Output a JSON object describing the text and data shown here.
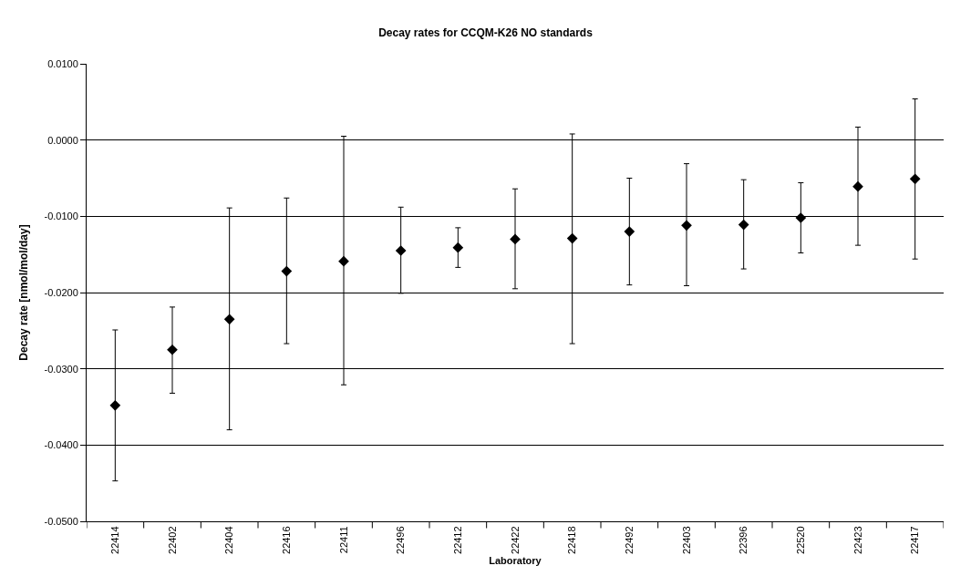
{
  "chart_data": {
    "type": "scatter",
    "title": "Decay rates for CCQM-K26 NO standards",
    "xlabel": "Laboratory",
    "ylabel": "Decay rate [nmol/mol/day]",
    "categories": [
      "22414",
      "22402",
      "22404",
      "22416",
      "22411",
      "22496",
      "22412",
      "22422",
      "22418",
      "22492",
      "22403",
      "22396",
      "22520",
      "22423",
      "22417"
    ],
    "series": [
      {
        "color": "#000000",
        "values": [
          -0.0348,
          -0.0275,
          -0.0235,
          -0.0172,
          -0.0159,
          -0.0145,
          -0.0141,
          -0.013,
          -0.0129,
          -0.012,
          -0.0112,
          -0.0111,
          -0.0102,
          -0.0061,
          -0.0051
        ],
        "errors": [
          [
            -0.0447,
            -0.0249
          ],
          [
            -0.0332,
            -0.0219
          ],
          [
            -0.038,
            -0.0089
          ],
          [
            -0.0267,
            -0.0076
          ],
          [
            -0.0321,
            0.0005
          ],
          [
            -0.0201,
            -0.0088
          ],
          [
            -0.0167,
            -0.0115
          ],
          [
            -0.0195,
            -0.0064
          ],
          [
            -0.0267,
            0.0008
          ],
          [
            -0.019,
            -0.005
          ],
          [
            -0.0191,
            -0.0031
          ],
          [
            -0.0169,
            -0.0052
          ],
          [
            -0.0148,
            -0.0056
          ],
          [
            -0.0138,
            0.0017
          ],
          [
            -0.0156,
            0.0054
          ]
        ]
      }
    ],
    "ylim": [
      -0.05,
      0.01
    ],
    "yticks": [
      {
        "value": -0.05,
        "label": "-0.0500"
      },
      {
        "value": -0.04,
        "label": "-0.0400"
      },
      {
        "value": -0.03,
        "label": "-0.0300"
      },
      {
        "value": -0.02,
        "label": "-0.0200"
      },
      {
        "value": -0.01,
        "label": "-0.0100"
      },
      {
        "value": 0,
        "label": "0.0000"
      },
      {
        "value": 0.01,
        "label": "0.0100"
      }
    ],
    "grid": "y",
    "marker": "diamond"
  }
}
